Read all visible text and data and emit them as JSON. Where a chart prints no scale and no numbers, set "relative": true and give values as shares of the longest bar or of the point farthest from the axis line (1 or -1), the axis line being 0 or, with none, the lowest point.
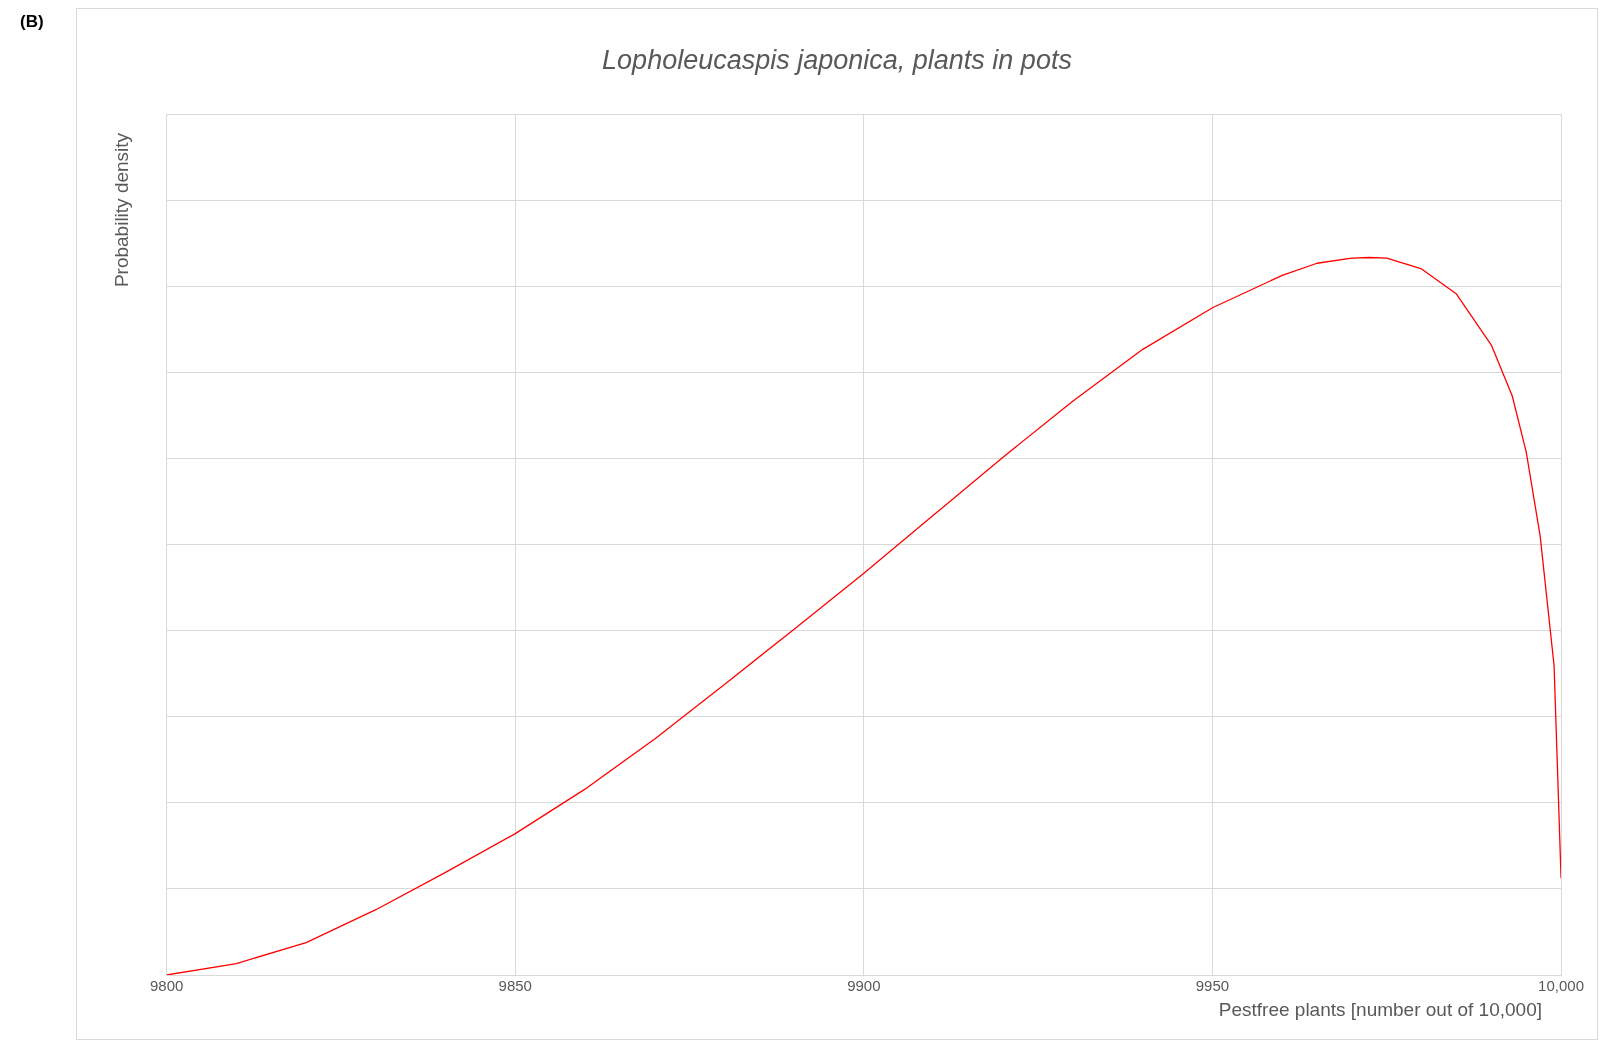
{
  "chart_data": {
    "type": "line",
    "title": "Lopholeucaspis japonica, plants in pots",
    "xlabel": "Pestfree plants [number out of 10,000]",
    "ylabel": "Probability density",
    "annotations": [
      "(B)"
    ],
    "relative": true,
    "grid": true,
    "legend": false,
    "marker": "none",
    "line_style": "solid",
    "xlim": [
      9800,
      10000
    ],
    "xticks": [
      9800,
      9850,
      9900,
      9950,
      {
        "value": 10000,
        "label": "10,000"
      }
    ],
    "series": [
      {
        "color": "#ff0000",
        "x": [
          9800,
          9810,
          9820,
          9830,
          9840,
          9850,
          9860,
          9870,
          9880,
          9890,
          9900,
          9910,
          9920,
          9930,
          9940,
          9950,
          9960,
          9965,
          9970,
          9972.5,
          9975,
          9980,
          9985,
          9990,
          9993,
          9995,
          9997,
          9999,
          10000
        ],
        "values": [
          0,
          0.016,
          0.045,
          0.091,
          0.143,
          0.197,
          0.259,
          0.329,
          0.405,
          0.482,
          0.56,
          0.641,
          0.722,
          0.8,
          0.872,
          0.93,
          0.975,
          0.992,
          0.999,
          1,
          0.999,
          0.984,
          0.949,
          0.878,
          0.807,
          0.729,
          0.612,
          0.431,
          0.135
        ]
      }
    ]
  }
}
